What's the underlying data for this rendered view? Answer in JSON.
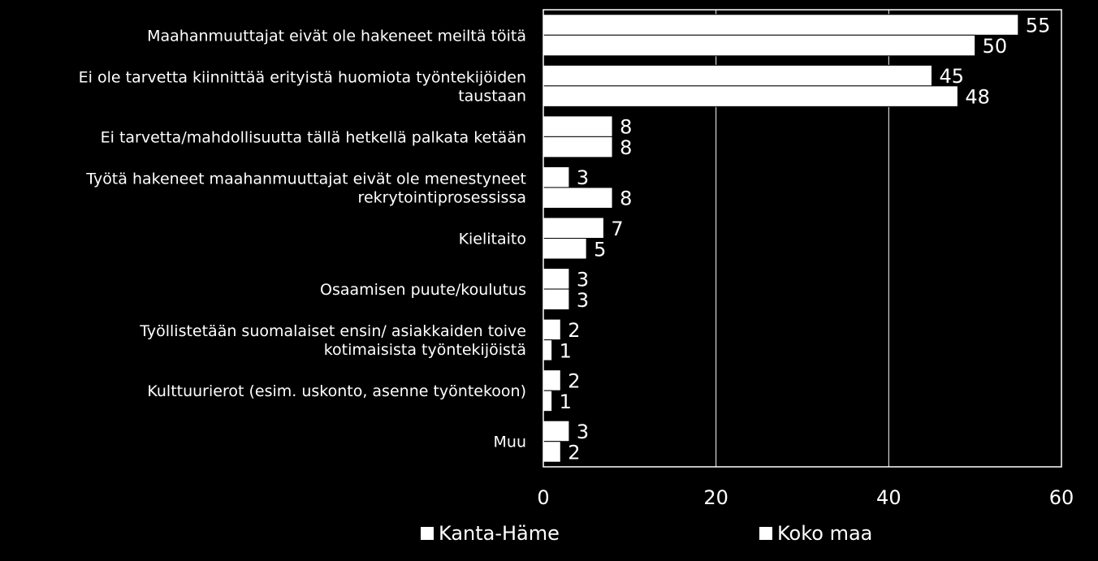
{
  "chart_data": {
    "type": "bar",
    "orientation": "horizontal",
    "categories": [
      [
        "Maahanmuuttajat eivät ole hakeneet meiltä töitä"
      ],
      [
        "Ei ole tarvetta kiinnittää erityistä huomiota työntekijöiden",
        "taustaan"
      ],
      [
        "Ei tarvetta/mahdollisuutta tällä hetkellä palkata ketään"
      ],
      [
        "Työtä hakeneet maahanmuuttajat eivät ole menestyneet",
        "rekrytointiprosessissa"
      ],
      [
        "Kielitaito"
      ],
      [
        "Osaamisen puute/koulutus"
      ],
      [
        "Työllistetään suomalaiset ensin/ asiakkaiden toive",
        "kotimaisista työntekijöistä"
      ],
      [
        "Kulttuurierot (esim. uskonto, asenne työntekoon)"
      ],
      [
        "Muu"
      ]
    ],
    "series": [
      {
        "name": "Kanta-Häme",
        "values": [
          55,
          45,
          8,
          3,
          7,
          3,
          2,
          2,
          3
        ]
      },
      {
        "name": "Koko maa",
        "values": [
          50,
          48,
          8,
          8,
          5,
          3,
          1,
          1,
          2
        ]
      }
    ],
    "xlim": [
      0,
      60
    ],
    "xticks": [
      "0",
      "20",
      "40",
      "60"
    ],
    "grid": true,
    "legend_position": "bottom",
    "bar_color": "#ffffff",
    "background": "#000000"
  }
}
